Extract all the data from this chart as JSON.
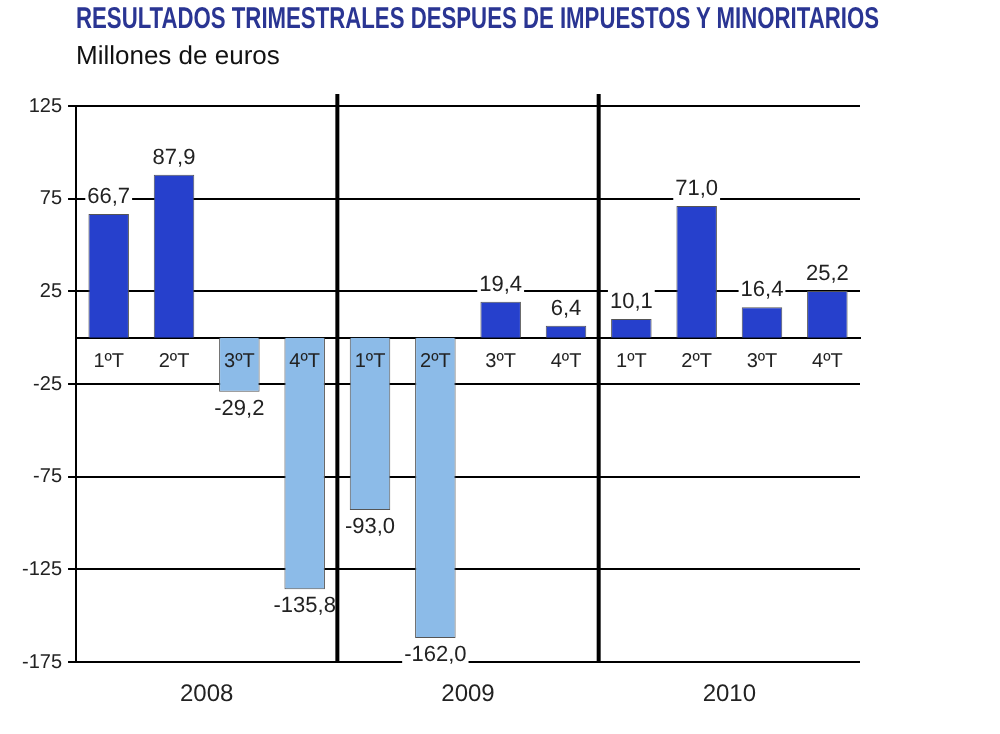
{
  "chart_data": {
    "type": "bar",
    "title": "RESULTADOS TRIMESTRALES DESPUES DE IMPUESTOS Y MINORITARIOS",
    "subtitle": "Millones de euros",
    "categories": [
      "1ºT",
      "2ºT",
      "3ºT",
      "4ºT",
      "1ºT",
      "2ºT",
      "3ºT",
      "4ºT",
      "1ºT",
      "2ºT",
      "3ºT",
      "4ºT"
    ],
    "values": [
      66.7,
      87.9,
      -29.2,
      -135.8,
      -93.0,
      -162.0,
      19.4,
      6.4,
      10.1,
      71.0,
      16.4,
      25.2
    ],
    "colors": [
      "#2640cc",
      "#2640cc",
      "#8cbbe8",
      "#8cbbe8",
      "#8cbbe8",
      "#8cbbe8",
      "#2640cc",
      "#2640cc",
      "#2640cc",
      "#2640cc",
      "#2640cc",
      "#2640cc"
    ],
    "value_labels": [
      "66,7",
      "87,9",
      "-29,2",
      "-135,8",
      "-93,0",
      "-162,0",
      "19,4",
      "6,4",
      "10,1",
      "71,0",
      "16,4",
      "25,2"
    ],
    "annotations": [
      "2008",
      "2009",
      "2010"
    ],
    "ylim": [
      -175,
      125
    ],
    "yticks": [
      -175,
      -125,
      -75,
      -25,
      25,
      75,
      125
    ],
    "grid": "y",
    "legend": false
  }
}
